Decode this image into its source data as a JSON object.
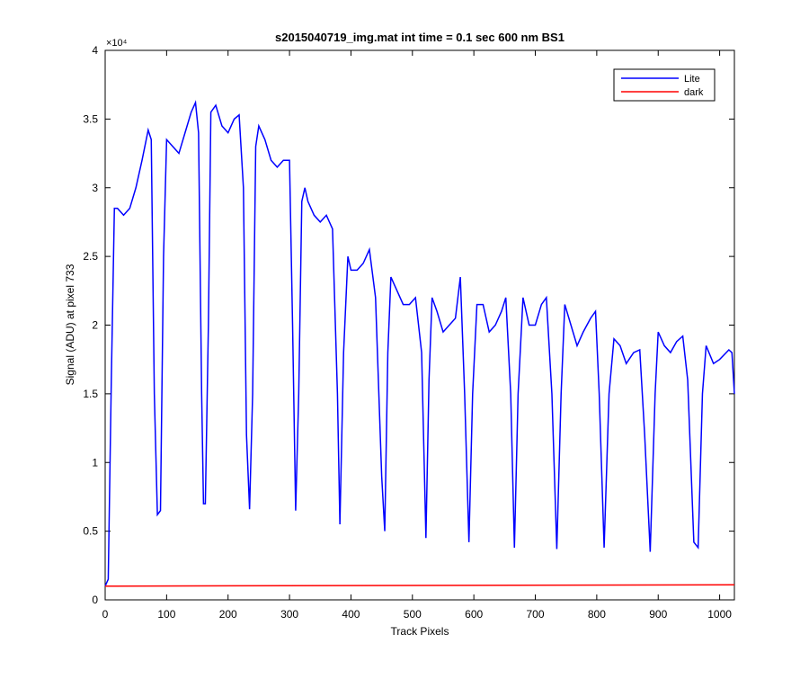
{
  "chart_data": {
    "type": "line",
    "title": "s2015040719_img.mat int time = 0.1 sec  600 nm BS1",
    "xlabel": "Track Pixels",
    "ylabel": "Signal (ADU) at pixel 733",
    "y_scale_label": "×10⁴",
    "xlim": [
      0,
      1024
    ],
    "xticks": [
      0,
      100,
      200,
      300,
      400,
      500,
      600,
      700,
      800,
      900,
      1000
    ],
    "ylim": [
      0,
      4
    ],
    "yticks": [
      0,
      0.5,
      1,
      1.5,
      2,
      2.5,
      3,
      3.5,
      4
    ],
    "grid": false,
    "legend_position": "upper-right",
    "series": [
      {
        "name": "Lite",
        "color": "#0000ff",
        "x": [
          0,
          5,
          10,
          15,
          20,
          30,
          40,
          50,
          60,
          70,
          75,
          80,
          85,
          90,
          95,
          100,
          110,
          120,
          130,
          140,
          147,
          152,
          157,
          160,
          163,
          168,
          172,
          180,
          190,
          200,
          210,
          218,
          225,
          230,
          235,
          240,
          245,
          250,
          260,
          270,
          280,
          290,
          300,
          305,
          310,
          315,
          320,
          325,
          330,
          340,
          350,
          360,
          370,
          378,
          382,
          388,
          395,
          400,
          410,
          420,
          430,
          440,
          450,
          455,
          460,
          465,
          475,
          485,
          495,
          505,
          515,
          522,
          527,
          532,
          540,
          550,
          560,
          570,
          578,
          585,
          592,
          598,
          605,
          615,
          625,
          635,
          645,
          652,
          660,
          666,
          672,
          680,
          690,
          700,
          710,
          718,
          727,
          735,
          742,
          748,
          758,
          768,
          778,
          790,
          798,
          804,
          812,
          820,
          828,
          838,
          848,
          860,
          870,
          878,
          887,
          895,
          900,
          910,
          920,
          930,
          940,
          948,
          958,
          965,
          972,
          978,
          990,
          1000,
          1015,
          1020,
          1024
        ],
        "values": [
          0.1,
          0.15,
          1.6,
          2.85,
          2.85,
          2.8,
          2.85,
          3.0,
          3.2,
          3.42,
          3.35,
          1.5,
          0.62,
          0.65,
          2.5,
          3.35,
          3.3,
          3.25,
          3.4,
          3.55,
          3.62,
          3.4,
          1.5,
          0.7,
          0.7,
          2.0,
          3.55,
          3.6,
          3.45,
          3.4,
          3.5,
          3.53,
          3.0,
          1.2,
          0.66,
          1.5,
          3.3,
          3.45,
          3.35,
          3.2,
          3.15,
          3.2,
          3.2,
          2.0,
          0.65,
          1.5,
          2.9,
          3.0,
          2.9,
          2.8,
          2.75,
          2.8,
          2.7,
          1.5,
          0.55,
          1.8,
          2.5,
          2.4,
          2.4,
          2.45,
          2.55,
          2.2,
          0.9,
          0.5,
          1.8,
          2.35,
          2.25,
          2.15,
          2.15,
          2.2,
          1.8,
          0.45,
          1.6,
          2.2,
          2.1,
          1.95,
          2.0,
          2.05,
          2.35,
          1.5,
          0.42,
          1.5,
          2.15,
          2.15,
          1.95,
          2.0,
          2.1,
          2.2,
          1.5,
          0.38,
          1.5,
          2.2,
          2.0,
          2.0,
          2.15,
          2.2,
          1.5,
          0.37,
          1.5,
          2.15,
          2.0,
          1.85,
          1.95,
          2.05,
          2.1,
          1.5,
          0.38,
          1.5,
          1.9,
          1.85,
          1.72,
          1.8,
          1.82,
          1.2,
          0.35,
          1.5,
          1.95,
          1.85,
          1.8,
          1.88,
          1.92,
          1.6,
          0.42,
          0.38,
          1.5,
          1.85,
          1.72,
          1.75,
          1.82,
          1.8,
          1.5
        ]
      },
      {
        "name": "dark",
        "color": "#ff0000",
        "x": [
          0,
          1024
        ],
        "values": [
          0.1,
          0.11
        ]
      }
    ]
  }
}
